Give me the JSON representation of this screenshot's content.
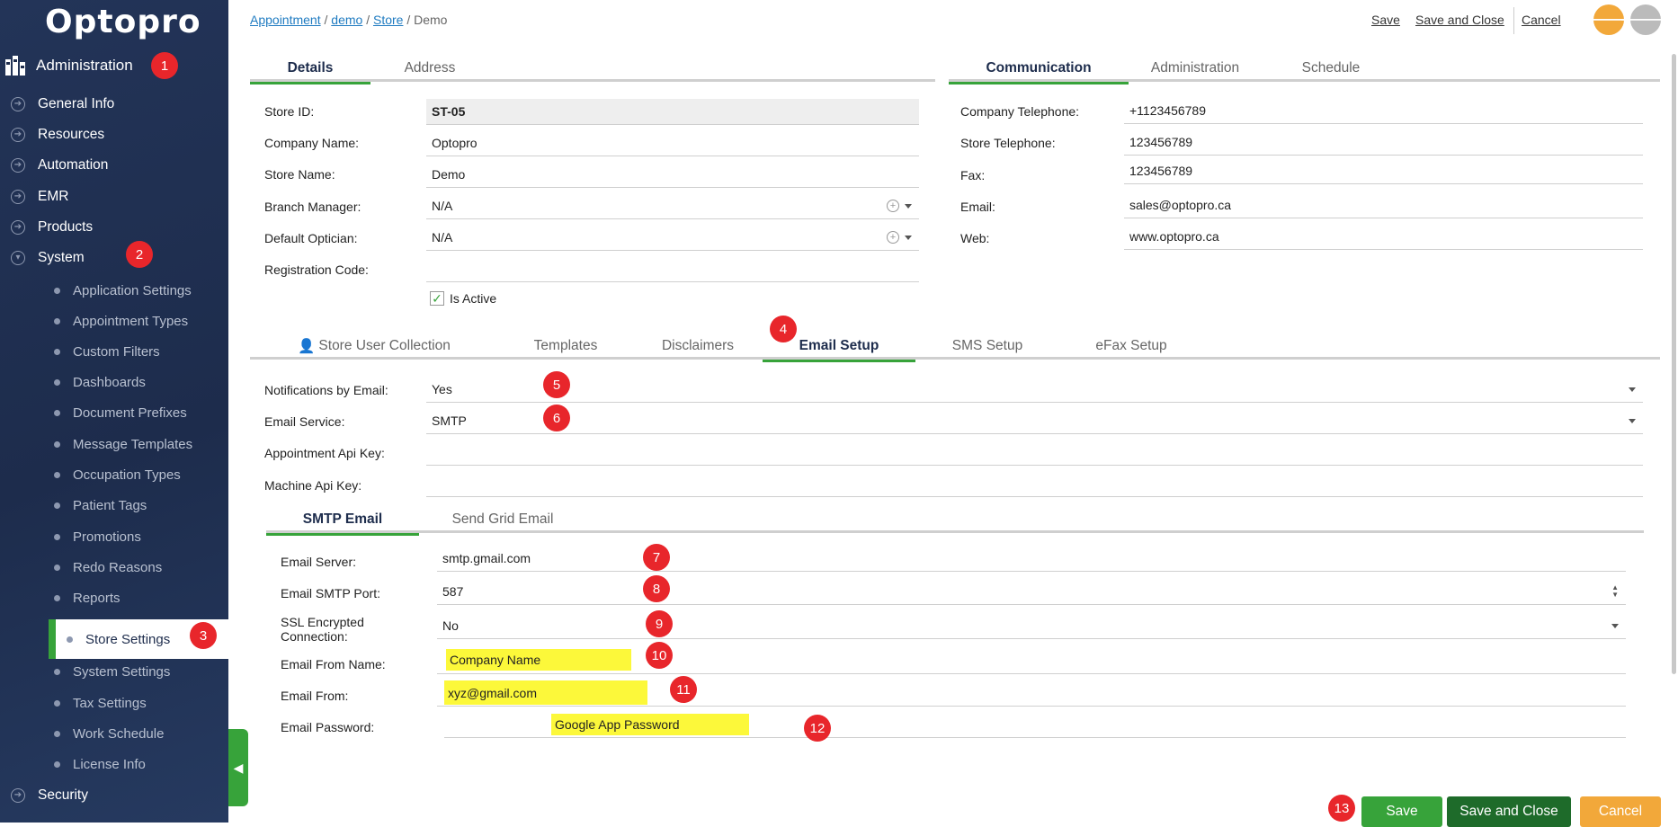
{
  "app": {
    "logo": "Optopro"
  },
  "sidebar": {
    "section": "Administration",
    "items": [
      "General Info",
      "Resources",
      "Automation",
      "EMR",
      "Products",
      "System"
    ],
    "sub_items": [
      "Application Settings",
      "Appointment Types",
      "Custom Filters",
      "Dashboards",
      "Document Prefixes",
      "Message Templates",
      "Occupation Types",
      "Patient Tags",
      "Promotions",
      "Redo Reasons",
      "Reports",
      "Store Settings",
      "System Settings",
      "Tax Settings",
      "Work Schedule",
      "License Info"
    ],
    "footer_item": "Security",
    "collapse_glyph": "◀"
  },
  "breadcrumb": {
    "appointment": "Appointment",
    "demo": "demo",
    "store": "Store",
    "current": "Demo",
    "sep": "/"
  },
  "top_actions": {
    "save": "Save",
    "save_close": "Save and Close",
    "cancel": "Cancel"
  },
  "tabs_left": [
    "Details",
    "Address"
  ],
  "tabs_right": [
    "Communication",
    "Administration",
    "Schedule"
  ],
  "details": {
    "store_id_label": "Store ID:",
    "store_id": "ST-05",
    "company_name_label": "Company Name:",
    "company_name": "Optopro",
    "store_name_label": "Store Name:",
    "store_name": "Demo",
    "branch_manager_label": "Branch Manager:",
    "branch_manager": "N/A",
    "default_optician_label": "Default Optician:",
    "default_optician": "N/A",
    "registration_code_label": "Registration Code:",
    "registration_code": "",
    "is_active_label": "Is Active"
  },
  "communication": {
    "company_tel_label": "Company Telephone:",
    "company_tel": "+1123456789",
    "store_tel_label": "Store Telephone:",
    "store_tel": "123456789",
    "fax_label": "Fax:",
    "fax": "123456789",
    "email_label": "Email:",
    "email": "sales@optopro.ca",
    "web_label": "Web:",
    "web": "www.optopro.ca"
  },
  "tabs_mid": [
    "Store User Collection",
    "Templates",
    "Disclaimers",
    "Email Setup",
    "SMS Setup",
    "eFax Setup"
  ],
  "email_setup": {
    "notifications_label": "Notifications by Email:",
    "notifications": "Yes",
    "service_label": "Email Service:",
    "service": "SMTP",
    "appt_api_label": "Appointment Api Key:",
    "appt_api": "",
    "machine_api_label": "Machine Api Key:",
    "machine_api": ""
  },
  "tabs_smtp": [
    "SMTP Email",
    "Send Grid Email"
  ],
  "smtp": {
    "server_label": "Email Server:",
    "server": "smtp.gmail.com",
    "port_label": "Email SMTP Port:",
    "port": "587",
    "ssl_label_1": "SSL Encrypted",
    "ssl_label_2": "Connection:",
    "ssl": "No",
    "from_name_label": "Email From Name:",
    "from_name": "Company Name",
    "from_label": "Email From:",
    "from": "xyz@gmail.com",
    "password_label": "Email Password:",
    "password": "Google App Password"
  },
  "buttons": {
    "save": "Save",
    "save_close": "Save and Close",
    "cancel": "Cancel"
  },
  "badges": [
    "1",
    "2",
    "3",
    "4",
    "5",
    "6",
    "7",
    "8",
    "9",
    "10",
    "11",
    "12",
    "13"
  ],
  "colors": {
    "sidebar": "#1d2c4c",
    "accent_green": "#37a33a",
    "badge_red": "#e8262b",
    "highlight_yellow": "#fcf83a",
    "cancel_orange": "#f2a83a",
    "link_blue": "#1f7bc1"
  }
}
